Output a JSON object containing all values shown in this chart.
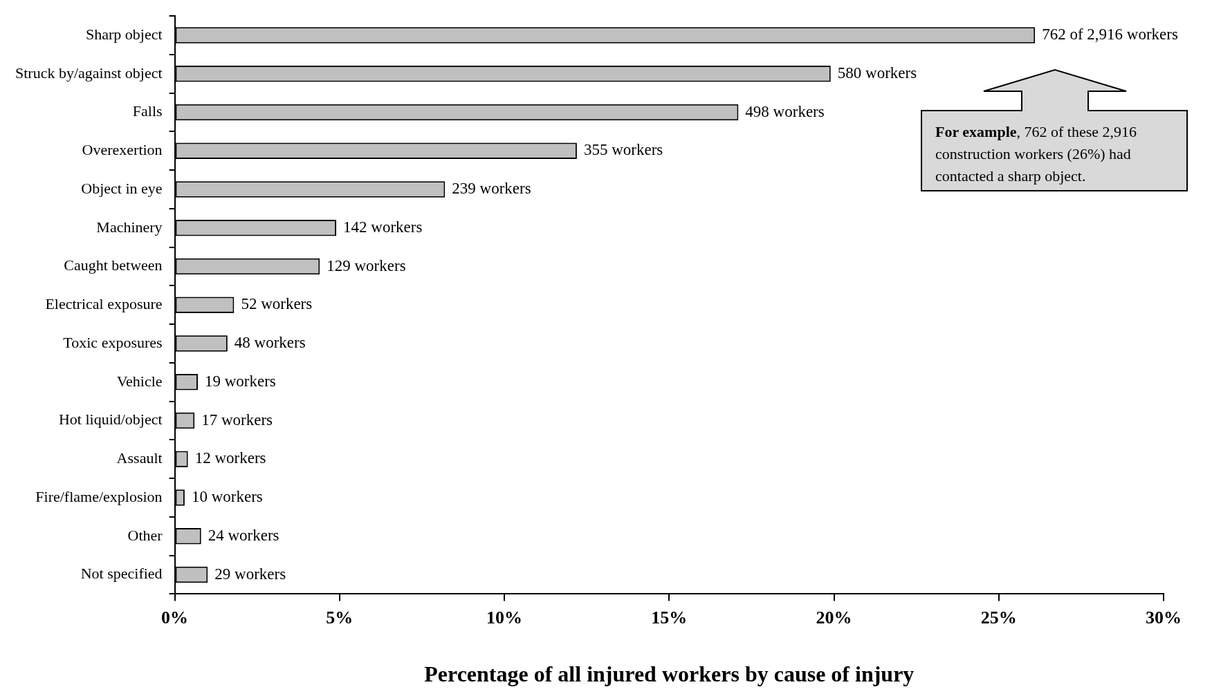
{
  "chart_data": {
    "type": "bar",
    "orientation": "horizontal",
    "categories": [
      "Sharp object",
      "Struck by/against object",
      "Falls",
      "Overexertion",
      "Object in eye",
      "Machinery",
      "Caught between",
      "Electrical exposure",
      "Toxic exposures",
      "Vehicle",
      "Hot liquid/object",
      "Assault",
      "Fire/flame/explosion",
      "Other",
      "Not specified"
    ],
    "values": [
      26.1,
      19.9,
      17.1,
      12.2,
      8.2,
      4.9,
      4.4,
      1.8,
      1.6,
      0.7,
      0.6,
      0.4,
      0.3,
      0.8,
      1.0
    ],
    "color": "#c0c0c0",
    "xlim": [
      0,
      30
    ],
    "xticks": [
      {
        "value": 0,
        "label": "0%"
      },
      {
        "value": 5,
        "label": "5%"
      },
      {
        "value": 10,
        "label": "10%"
      },
      {
        "value": 15,
        "label": "15%"
      },
      {
        "value": 20,
        "label": "20%"
      },
      {
        "value": 25,
        "label": "25%"
      },
      {
        "value": 30,
        "label": "30%"
      }
    ],
    "xlabel": "Percentage of all injured workers by cause of injury",
    "annotations": [
      "For example, 762 of these 2,916 construction workers (26%) had contacted a sharp object.",
      {
        "text": "762 of 2,916 workers",
        "x": 26.1,
        "y": "Sharp object"
      },
      {
        "text": "580 workers",
        "x": 19.9,
        "y": "Struck by/against object"
      },
      {
        "text": "498 workers",
        "x": 17.1,
        "y": "Falls"
      },
      {
        "text": "355 workers",
        "x": 12.2,
        "y": "Overexertion"
      },
      {
        "text": "239 workers",
        "x": 8.2,
        "y": "Object in eye"
      },
      {
        "text": "142 workers",
        "x": 4.9,
        "y": "Machinery"
      },
      {
        "text": "129 workers",
        "x": 4.4,
        "y": "Caught between"
      },
      {
        "text": "52 workers",
        "x": 1.8,
        "y": "Electrical exposure"
      },
      {
        "text": "48 workers",
        "x": 1.6,
        "y": "Toxic exposures"
      },
      {
        "text": "19 workers",
        "x": 0.7,
        "y": "Vehicle"
      },
      {
        "text": "17 workers",
        "x": 0.6,
        "y": "Hot liquid/object"
      },
      {
        "text": "12 workers",
        "x": 0.4,
        "y": "Assault"
      },
      {
        "text": "10 workers",
        "x": 0.3,
        "y": "Fire/flame/explosion"
      },
      {
        "text": "24 workers",
        "x": 0.8,
        "y": "Other"
      },
      {
        "text": "29 workers",
        "x": 1.0,
        "y": "Not specified"
      }
    ],
    "grid": false,
    "legend": false
  }
}
